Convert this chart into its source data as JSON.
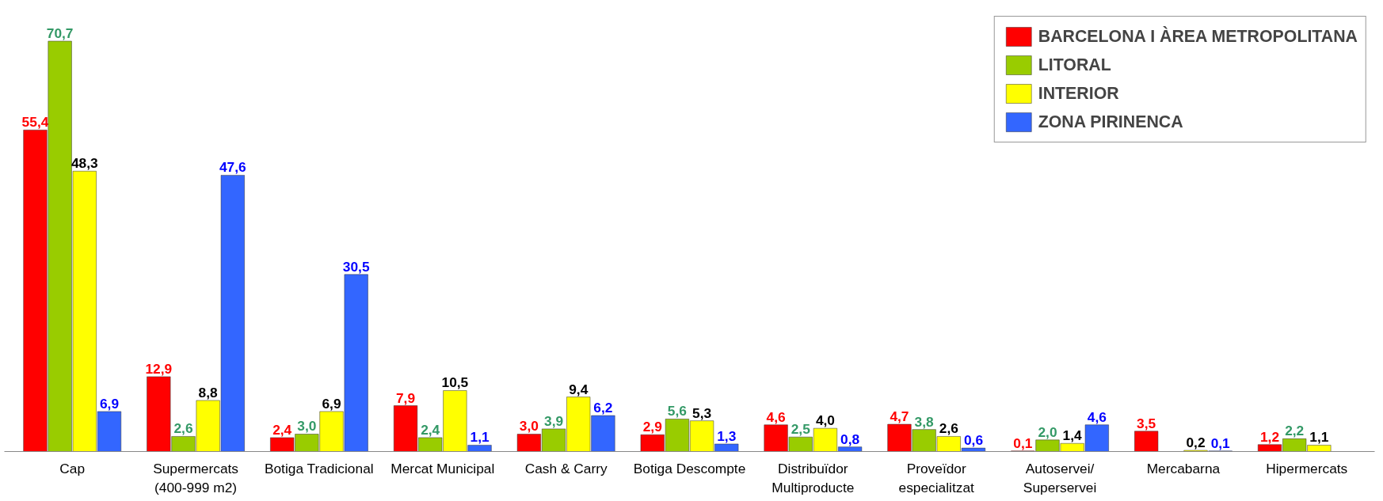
{
  "chart_data": {
    "type": "bar",
    "legend": "top right",
    "categories": [
      "Cap",
      "Supermercats\n(400-999 m2)",
      "Botiga Tradicional",
      "Mercat Municipal",
      "Cash & Carry",
      "Botiga Descompte",
      "Distribuïdor\nMultiproducte",
      "Proveïdor\nespecialitzat",
      "Autoservei/\nSuperservei",
      "Mercabarna",
      "Hipermercats"
    ],
    "series": [
      {
        "name": "BARCELONA I ÀREA METROPOLITANA",
        "color": "#ff0000",
        "values": [
          55.4,
          12.9,
          2.4,
          7.9,
          3.0,
          2.9,
          4.6,
          4.7,
          0.1,
          3.5,
          1.2
        ],
        "value_labels": [
          "55,4",
          "12,9",
          "2,4",
          "7,9",
          "3,0",
          "2,9",
          "4,6",
          "4,7",
          "0,1",
          "3,5",
          "1,2"
        ]
      },
      {
        "name": "LITORAL",
        "color": "#99cc00",
        "values": [
          70.7,
          2.6,
          3.0,
          2.4,
          3.9,
          5.6,
          2.5,
          3.8,
          2.0,
          null,
          2.2
        ],
        "value_labels": [
          "70,7",
          "2,6",
          "3,0",
          "2,4",
          "3,9",
          "5,6",
          "2,5",
          "3,8",
          "2,0",
          null,
          "2,2"
        ]
      },
      {
        "name": "INTERIOR",
        "color": "#ffff00",
        "values": [
          48.3,
          8.8,
          6.9,
          10.5,
          9.4,
          5.3,
          4.0,
          2.6,
          1.4,
          0.2,
          1.1
        ],
        "value_labels": [
          "48,3",
          "8,8",
          "6,9",
          "10,5",
          "9,4",
          "5,3",
          "4,0",
          "2,6",
          "1,4",
          "0,2",
          "1,1"
        ]
      },
      {
        "name": "ZONA PIRINENCA",
        "color": "#3366ff",
        "values": [
          6.9,
          47.6,
          30.5,
          1.1,
          6.2,
          1.3,
          0.8,
          0.6,
          4.6,
          0.1,
          null
        ],
        "value_labels": [
          "6,9",
          "47,6",
          "30,5",
          "1,1",
          "6,2",
          "1,3",
          "0,8",
          "0,6",
          "4,6",
          "0,1",
          null
        ]
      }
    ]
  }
}
